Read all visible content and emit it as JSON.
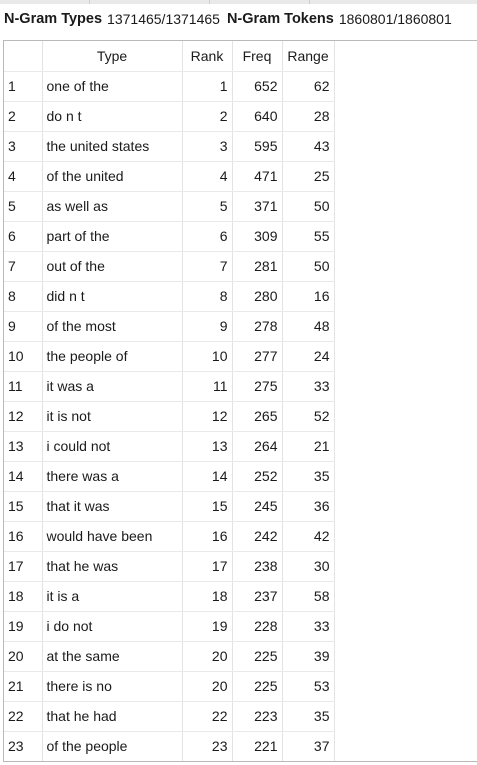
{
  "stats": {
    "types_label": "N-Gram Types",
    "types_value": "1371465/1371465",
    "tokens_label": "N-Gram Tokens",
    "tokens_value": "1860801/1860801"
  },
  "table": {
    "columns": [
      "",
      "Type",
      "Rank",
      "Freq",
      "Range"
    ],
    "rows": [
      [
        "1",
        "one of the",
        "1",
        "652",
        "62"
      ],
      [
        "2",
        "do n t",
        "2",
        "640",
        "28"
      ],
      [
        "3",
        "the united states",
        "3",
        "595",
        "43"
      ],
      [
        "4",
        "of the united",
        "4",
        "471",
        "25"
      ],
      [
        "5",
        "as well as",
        "5",
        "371",
        "50"
      ],
      [
        "6",
        "part of the",
        "6",
        "309",
        "55"
      ],
      [
        "7",
        "out of the",
        "7",
        "281",
        "50"
      ],
      [
        "8",
        "did n t",
        "8",
        "280",
        "16"
      ],
      [
        "9",
        "of the most",
        "9",
        "278",
        "48"
      ],
      [
        "10",
        "the people of",
        "10",
        "277",
        "24"
      ],
      [
        "11",
        "it was a",
        "11",
        "275",
        "33"
      ],
      [
        "12",
        "it is not",
        "12",
        "265",
        "52"
      ],
      [
        "13",
        "i could not",
        "13",
        "264",
        "21"
      ],
      [
        "14",
        "there was a",
        "14",
        "252",
        "35"
      ],
      [
        "15",
        "that it was",
        "15",
        "245",
        "36"
      ],
      [
        "16",
        "would have been",
        "16",
        "242",
        "42"
      ],
      [
        "17",
        "that he was",
        "17",
        "238",
        "30"
      ],
      [
        "18",
        "it is a",
        "18",
        "237",
        "58"
      ],
      [
        "19",
        "i do not",
        "19",
        "228",
        "33"
      ],
      [
        "20",
        "at the same",
        "20",
        "225",
        "39"
      ],
      [
        "21",
        "there is no",
        "20",
        "225",
        "53"
      ],
      [
        "22",
        "that he had",
        "22",
        "223",
        "35"
      ],
      [
        "23",
        "of the people",
        "23",
        "221",
        "37"
      ]
    ]
  }
}
